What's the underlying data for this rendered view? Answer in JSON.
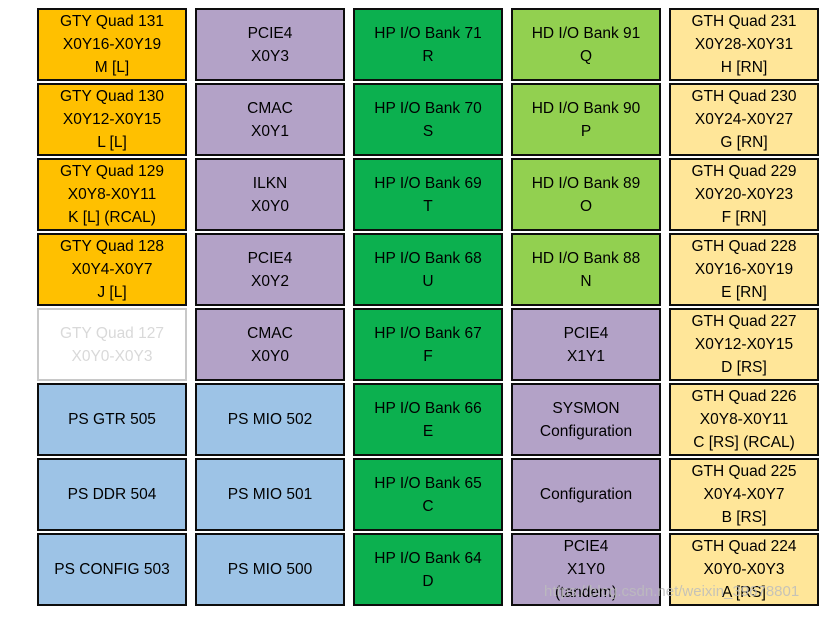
{
  "watermark": {
    "text": "https://blog.csdn.net/weixin_39678801",
    "color": "#bdbdbd"
  },
  "palette": {
    "orange": {
      "bg": "#FFC000",
      "text": "#000000",
      "border": "#0d0d0d"
    },
    "purple": {
      "bg": "#B3A2C7",
      "text": "#000000",
      "border": "#0d0d0d"
    },
    "green": {
      "bg": "#0CB04F",
      "text": "#000000",
      "border": "#0d0d0d"
    },
    "lightgreen": {
      "bg": "#92D050",
      "text": "#000000",
      "border": "#0d0d0d"
    },
    "blue": {
      "bg": "#9DC3E6",
      "text": "#000000",
      "border": "#0d0d0d"
    },
    "tan": {
      "bg": "#FFE699",
      "text": "#000000",
      "border": "#0d0d0d"
    },
    "faded": {
      "bg": "#FFFFFF",
      "text": "#D9D9D9",
      "border": "#C8C8C8"
    }
  },
  "grid": {
    "columns": [
      {
        "name": "gty-ps-column",
        "cells": [
          {
            "style": "orange",
            "lines": [
              "GTY Quad 131",
              "X0Y16-X0Y19",
              "M [L]"
            ]
          },
          {
            "style": "orange",
            "lines": [
              "GTY Quad 130",
              "X0Y12-X0Y15",
              "L [L]"
            ]
          },
          {
            "style": "orange",
            "lines": [
              "GTY Quad 129",
              "X0Y8-X0Y11",
              "K [L] (RCAL)"
            ]
          },
          {
            "style": "orange",
            "lines": [
              "GTY Quad 128",
              "X0Y4-X0Y7",
              "J [L]"
            ]
          },
          {
            "style": "faded",
            "lines": [
              "GTY Quad 127",
              "X0Y0-X0Y3"
            ]
          },
          {
            "style": "blue",
            "lines": [
              "PS GTR 505"
            ]
          },
          {
            "style": "blue",
            "lines": [
              "PS DDR 504"
            ]
          },
          {
            "style": "blue",
            "lines": [
              "PS CONFIG 503"
            ]
          }
        ]
      },
      {
        "name": "hard-ip-ps-mio-column",
        "cells": [
          {
            "style": "purple",
            "lines": [
              "PCIE4",
              "X0Y3"
            ]
          },
          {
            "style": "purple",
            "lines": [
              "CMAC",
              "X0Y1"
            ]
          },
          {
            "style": "purple",
            "lines": [
              "ILKN",
              "X0Y0"
            ]
          },
          {
            "style": "purple",
            "lines": [
              "PCIE4",
              "X0Y2"
            ]
          },
          {
            "style": "purple",
            "lines": [
              "CMAC",
              "X0Y0"
            ]
          },
          {
            "style": "blue",
            "lines": [
              "PS MIO 502"
            ]
          },
          {
            "style": "blue",
            "lines": [
              "PS MIO 501"
            ]
          },
          {
            "style": "blue",
            "lines": [
              "PS MIO 500"
            ]
          }
        ]
      },
      {
        "name": "hp-io-bank-column",
        "cells": [
          {
            "style": "green",
            "lines": [
              "HP I/O Bank 71",
              "R"
            ]
          },
          {
            "style": "green",
            "lines": [
              "HP I/O Bank 70",
              "S"
            ]
          },
          {
            "style": "green",
            "lines": [
              "HP I/O Bank 69",
              "T"
            ]
          },
          {
            "style": "green",
            "lines": [
              "HP I/O Bank 68",
              "U"
            ]
          },
          {
            "style": "green",
            "lines": [
              "HP I/O Bank 67",
              "F"
            ]
          },
          {
            "style": "green",
            "lines": [
              "HP I/O Bank 66",
              "E"
            ]
          },
          {
            "style": "green",
            "lines": [
              "HP I/O Bank 65",
              "C"
            ]
          },
          {
            "style": "green",
            "lines": [
              "HP I/O Bank 64",
              "D"
            ]
          }
        ]
      },
      {
        "name": "hd-io-config-column",
        "cells": [
          {
            "style": "lightgreen",
            "lines": [
              "HD I/O Bank 91",
              "Q"
            ]
          },
          {
            "style": "lightgreen",
            "lines": [
              "HD I/O Bank 90",
              "P"
            ]
          },
          {
            "style": "lightgreen",
            "lines": [
              "HD I/O Bank 89",
              "O"
            ]
          },
          {
            "style": "lightgreen",
            "lines": [
              "HD I/O Bank 88",
              "N"
            ]
          },
          {
            "style": "purple",
            "lines": [
              "PCIE4",
              "X1Y1"
            ]
          },
          {
            "style": "purple",
            "lines": [
              "SYSMON",
              "Configuration"
            ]
          },
          {
            "style": "purple",
            "lines": [
              "Configuration"
            ]
          },
          {
            "style": "purple",
            "lines": [
              "PCIE4",
              "X1Y0",
              "(tandem)"
            ]
          }
        ]
      },
      {
        "name": "gth-quad-column",
        "cells": [
          {
            "style": "tan",
            "lines": [
              "GTH Quad 231",
              "X0Y28-X0Y31",
              "H [RN]"
            ]
          },
          {
            "style": "tan",
            "lines": [
              "GTH Quad 230",
              "X0Y24-X0Y27",
              "G [RN]"
            ]
          },
          {
            "style": "tan",
            "lines": [
              "GTH Quad 229",
              "X0Y20-X0Y23",
              "F [RN]"
            ]
          },
          {
            "style": "tan",
            "lines": [
              "GTH Quad 228",
              "X0Y16-X0Y19",
              "E [RN]"
            ]
          },
          {
            "style": "tan",
            "lines": [
              "GTH Quad 227",
              "X0Y12-X0Y15",
              "D [RS]"
            ]
          },
          {
            "style": "tan",
            "lines": [
              "GTH Quad 226",
              "X0Y8-X0Y11",
              "C [RS] (RCAL)"
            ]
          },
          {
            "style": "tan",
            "lines": [
              "GTH Quad 225",
              "X0Y4-X0Y7",
              "B [RS]"
            ]
          },
          {
            "style": "tan",
            "lines": [
              "GTH Quad 224",
              "X0Y0-X0Y3",
              "A [RS]"
            ]
          }
        ]
      }
    ]
  }
}
